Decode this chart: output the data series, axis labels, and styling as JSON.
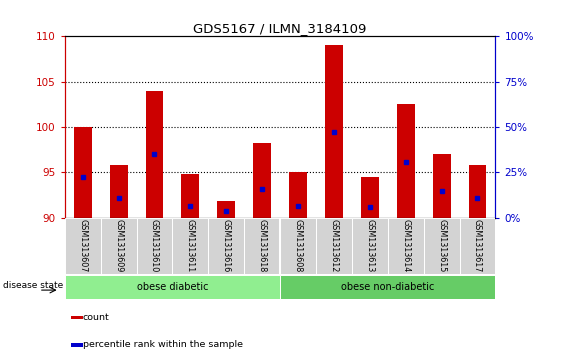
{
  "title": "GDS5167 / ILMN_3184109",
  "samples": [
    "GSM1313607",
    "GSM1313609",
    "GSM1313610",
    "GSM1313611",
    "GSM1313616",
    "GSM1313618",
    "GSM1313608",
    "GSM1313612",
    "GSM1313613",
    "GSM1313614",
    "GSM1313615",
    "GSM1313617"
  ],
  "bar_tops": [
    100.0,
    95.8,
    104.0,
    94.8,
    91.8,
    98.2,
    95.0,
    109.0,
    94.5,
    102.5,
    97.0,
    95.8
  ],
  "blue_positions": [
    94.5,
    92.2,
    97.0,
    91.3,
    90.8,
    93.2,
    91.3,
    99.5,
    91.2,
    96.2,
    93.0,
    92.2
  ],
  "bar_bottom": 90,
  "bar_color": "#cc0000",
  "blue_color": "#0000cc",
  "ylim_left": [
    90,
    110
  ],
  "yleft_ticks": [
    90,
    95,
    100,
    105,
    110
  ],
  "yright_ticks": [
    0,
    25,
    50,
    75,
    100
  ],
  "yright_lim": [
    0,
    100
  ],
  "groups": [
    {
      "label": "obese diabetic",
      "start": 0,
      "end": 6,
      "color": "#90ee90"
    },
    {
      "label": "obese non-diabetic",
      "start": 6,
      "end": 12,
      "color": "#66cc66"
    }
  ],
  "disease_state_label": "disease state",
  "legend_items": [
    {
      "label": "count",
      "color": "#cc0000"
    },
    {
      "label": "percentile rank within the sample",
      "color": "#0000cc"
    }
  ],
  "left_tick_color": "#cc0000",
  "right_tick_color": "#0000cc",
  "bg_color": "#ffffff",
  "bar_width": 0.5,
  "label_bg_color": "#d3d3d3",
  "grid_yticks": [
    95,
    100,
    105
  ]
}
